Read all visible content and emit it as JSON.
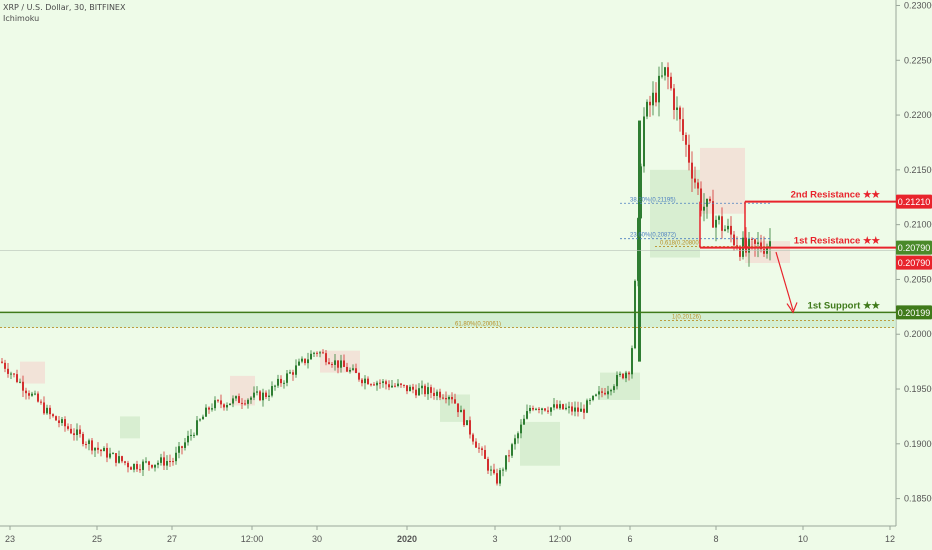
{
  "header": {
    "symbol": "XRP / U.S. Dollar, 30, BITFINEX",
    "indicator": "Ichimoku"
  },
  "colors": {
    "background": "#eefbe8",
    "resistance": "#e8242c",
    "support": "#3f7a1a",
    "up_candle": "#2e7d32",
    "down_candle": "#d32f2f",
    "fib_blue": "#4a7ec0",
    "fib_gold": "#b8902a",
    "current_price": "#4a8a2a"
  },
  "chart_data": {
    "type": "line",
    "ylim": [
      0.1825,
      0.2305
    ],
    "yticks": [
      "0.23000",
      "0.22500",
      "0.22000",
      "0.21500",
      "0.21000",
      "0.20500",
      "0.20000",
      "0.19500",
      "0.19000",
      "0.18500"
    ],
    "ytick_values": [
      0.23,
      0.225,
      0.22,
      0.215,
      0.21,
      0.205,
      0.2,
      0.195,
      0.19,
      0.185
    ],
    "xlabels": [
      "23",
      "25",
      "27",
      "12:00",
      "30",
      "2020",
      "3",
      "12:00",
      "6",
      "8",
      "10",
      "12"
    ],
    "series": [
      {
        "x": [
          "23",
          "24",
          "25",
          "26",
          "27",
          "28",
          "29",
          "30",
          "31",
          "2020",
          "2",
          "3",
          "4",
          "5",
          "6",
          "7",
          "8",
          "9"
        ],
        "values": [
          0.197,
          0.193,
          0.1905,
          0.1895,
          0.1875,
          0.1935,
          0.1955,
          0.1975,
          0.1965,
          0.195,
          0.194,
          0.187,
          0.194,
          0.193,
          0.198,
          0.224,
          0.2135,
          0.208
        ]
      }
    ],
    "levels": [
      {
        "name": "2nd Resistance ★★",
        "value": 0.2121,
        "label": "0.21210"
      },
      {
        "name": "1st Resistance ★★",
        "value": 0.2079,
        "label": "0.20790"
      },
      {
        "name": "1st Support ★★",
        "value": 0.20199,
        "label": "0.20199"
      }
    ],
    "current_price": {
      "value": 0.2079,
      "label": "0.20790"
    },
    "fib_labels": [
      {
        "text": "38.20%(0.21195)",
        "value": 0.21195
      },
      {
        "text": "23.60%(0.20872)",
        "value": 0.20872
      },
      {
        "text": "0.618(0.20800)",
        "value": 0.208
      },
      {
        "text": "1(0.20126)",
        "value": 0.20126
      },
      {
        "text": "61.80%(0.20061)",
        "value": 0.20061
      }
    ]
  }
}
